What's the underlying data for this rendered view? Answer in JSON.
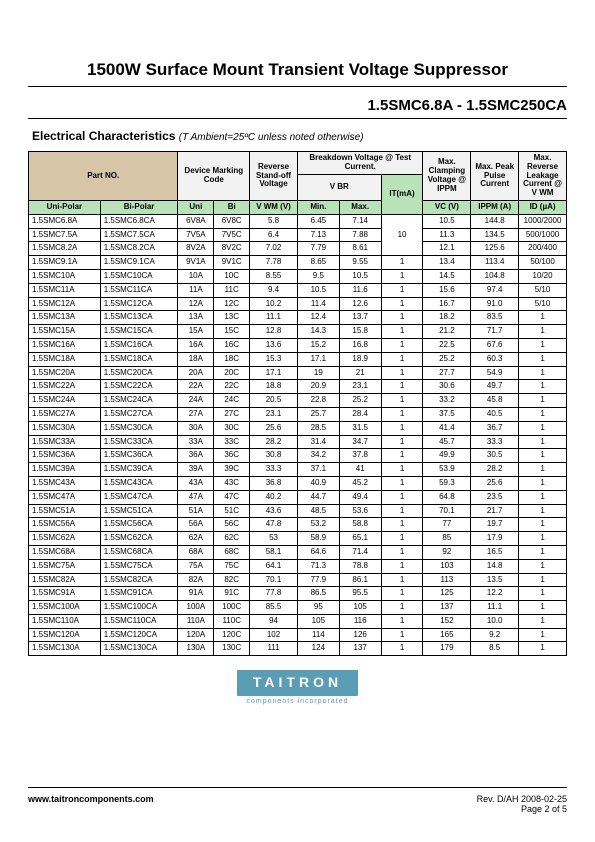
{
  "title": "1500W Surface Mount Transient Voltage Suppressor",
  "subtitle": "1.5SMC6.8A - 1.5SMC250CA",
  "section_label": "Electrical Characteristics",
  "section_note": "(T Ambient=25ºC unless noted otherwise)",
  "table": {
    "headers": {
      "part_no": "Part NO.",
      "uni_polar": "Uni-Polar",
      "bi_polar": "Bi-Polar",
      "dev_mark": "Device Marking Code",
      "uni": "Uni",
      "bi": "Bi",
      "rev_standoff": "Reverse Stand-off Voltage",
      "vwm": "V WM  (V)",
      "breakdown": "Breakdown Voltage @ Test Current.",
      "vbr": "V BR",
      "min": "Min.",
      "max": "Max.",
      "it": "IT(mA)",
      "max_clamp": "Max. Clamping Voltage @ IPPM",
      "vc": "VC  (V)",
      "max_peak": "Max. Peak Pulse Current",
      "ippm": "IPPM (A)",
      "max_leak": "Max. Reverse Leakage Current @ V WM",
      "id": "ID (µA)"
    },
    "rows": [
      [
        "1.5SMC6.8A",
        "1.5SMC6.8CA",
        "6V8A",
        "6V8C",
        "5.8",
        "6.45",
        "7.14",
        "",
        "10.5",
        "144.8",
        "1000/2000"
      ],
      [
        "1.5SMC7.5A",
        "1.5SMC7.5CA",
        "7V5A",
        "7V5C",
        "6.4",
        "7.13",
        "7.88",
        "10",
        "11.3",
        "134.5",
        "500/1000"
      ],
      [
        "1.5SMC8.2A",
        "1.5SMC8.2CA",
        "8V2A",
        "8V2C",
        "7.02",
        "7.79",
        "8.61",
        "",
        "12.1",
        "125.6",
        "200/400"
      ],
      [
        "1.5SMC9.1A",
        "1.5SMC9.1CA",
        "9V1A",
        "9V1C",
        "7.78",
        "8.65",
        "9.55",
        "1",
        "13.4",
        "113.4",
        "50/100"
      ],
      [
        "1.5SMC10A",
        "1.5SMC10CA",
        "10A",
        "10C",
        "8.55",
        "9.5",
        "10.5",
        "1",
        "14.5",
        "104.8",
        "10/20"
      ],
      [
        "1.5SMC11A",
        "1.5SMC11CA",
        "11A",
        "11C",
        "9.4",
        "10.5",
        "11.6",
        "1",
        "15.6",
        "97.4",
        "5/10"
      ],
      [
        "1.5SMC12A",
        "1.5SMC12CA",
        "12A",
        "12C",
        "10.2",
        "11.4",
        "12.6",
        "1",
        "16.7",
        "91.0",
        "5/10"
      ],
      [
        "1.5SMC13A",
        "1.5SMC13CA",
        "13A",
        "13C",
        "11.1",
        "12.4",
        "13.7",
        "1",
        "18.2",
        "83.5",
        "1"
      ],
      [
        "1.5SMC15A",
        "1.5SMC15CA",
        "15A",
        "15C",
        "12.8",
        "14.3",
        "15.8",
        "1",
        "21.2",
        "71.7",
        "1"
      ],
      [
        "1.5SMC16A",
        "1.5SMC16CA",
        "16A",
        "16C",
        "13.6",
        "15.2",
        "16.8",
        "1",
        "22.5",
        "67.6",
        "1"
      ],
      [
        "1.5SMC18A",
        "1.5SMC18CA",
        "18A",
        "18C",
        "15.3",
        "17.1",
        "18.9",
        "1",
        "25.2",
        "60.3",
        "1"
      ],
      [
        "1.5SMC20A",
        "1.5SMC20CA",
        "20A",
        "20C",
        "17.1",
        "19",
        "21",
        "1",
        "27.7",
        "54.9",
        "1"
      ],
      [
        "1.5SMC22A",
        "1.5SMC22CA",
        "22A",
        "22C",
        "18.8",
        "20.9",
        "23.1",
        "1",
        "30.6",
        "49.7",
        "1"
      ],
      [
        "1.5SMC24A",
        "1.5SMC24CA",
        "24A",
        "24C",
        "20.5",
        "22.8",
        "25.2",
        "1",
        "33.2",
        "45.8",
        "1"
      ],
      [
        "1.5SMC27A",
        "1.5SMC27CA",
        "27A",
        "27C",
        "23.1",
        "25.7",
        "28.4",
        "1",
        "37.5",
        "40.5",
        "1"
      ],
      [
        "1.5SMC30A",
        "1.5SMC30CA",
        "30A",
        "30C",
        "25.6",
        "28.5",
        "31.5",
        "1",
        "41.4",
        "36.7",
        "1"
      ],
      [
        "1.5SMC33A",
        "1.5SMC33CA",
        "33A",
        "33C",
        "28.2",
        "31.4",
        "34.7",
        "1",
        "45.7",
        "33.3",
        "1"
      ],
      [
        "1.5SMC36A",
        "1.5SMC36CA",
        "36A",
        "36C",
        "30.8",
        "34.2",
        "37.8",
        "1",
        "49.9",
        "30.5",
        "1"
      ],
      [
        "1.5SMC39A",
        "1.5SMC39CA",
        "39A",
        "39C",
        "33.3",
        "37.1",
        "41",
        "1",
        "53.9",
        "28.2",
        "1"
      ],
      [
        "1.5SMC43A",
        "1.5SMC43CA",
        "43A",
        "43C",
        "36.8",
        "40.9",
        "45.2",
        "1",
        "59.3",
        "25.6",
        "1"
      ],
      [
        "1.5SMC47A",
        "1.5SMC47CA",
        "47A",
        "47C",
        "40.2",
        "44.7",
        "49.4",
        "1",
        "64.8",
        "23.5",
        "1"
      ],
      [
        "1.5SMC51A",
        "1.5SMC51CA",
        "51A",
        "51C",
        "43.6",
        "48.5",
        "53.6",
        "1",
        "70.1",
        "21.7",
        "1"
      ],
      [
        "1.5SMC56A",
        "1.5SMC56CA",
        "56A",
        "56C",
        "47.8",
        "53.2",
        "58.8",
        "1",
        "77",
        "19.7",
        "1"
      ],
      [
        "1.5SMC62A",
        "1.5SMC62CA",
        "62A",
        "62C",
        "53",
        "58.9",
        "65.1",
        "1",
        "85",
        "17.9",
        "1"
      ],
      [
        "1.5SMC68A",
        "1.5SMC68CA",
        "68A",
        "68C",
        "58.1",
        "64.6",
        "71.4",
        "1",
        "92",
        "16.5",
        "1"
      ],
      [
        "1.5SMC75A",
        "1.5SMC75CA",
        "75A",
        "75C",
        "64.1",
        "71.3",
        "78.8",
        "1",
        "103",
        "14.8",
        "1"
      ],
      [
        "1.5SMC82A",
        "1.5SMC82CA",
        "82A",
        "82C",
        "70.1",
        "77.9",
        "86.1",
        "1",
        "113",
        "13.5",
        "1"
      ],
      [
        "1.5SMC91A",
        "1.5SMC91CA",
        "91A",
        "91C",
        "77.8",
        "86.5",
        "95.5",
        "1",
        "125",
        "12.2",
        "1"
      ],
      [
        "1.5SMC100A",
        "1.5SMC100CA",
        "100A",
        "100C",
        "85.5",
        "95",
        "105",
        "1",
        "137",
        "11.1",
        "1"
      ],
      [
        "1.5SMC110A",
        "1.5SMC110CA",
        "110A",
        "110C",
        "94",
        "105",
        "116",
        "1",
        "152",
        "10.0",
        "1"
      ],
      [
        "1.5SMC120A",
        "1.5SMC120CA",
        "120A",
        "120C",
        "102",
        "114",
        "126",
        "1",
        "165",
        "9.2",
        "1"
      ],
      [
        "1.5SMC130A",
        "1.5SMC130CA",
        "130A",
        "130C",
        "111",
        "124",
        "137",
        "1",
        "179",
        "8.5",
        "1"
      ]
    ],
    "col_widths_pct": [
      12,
      13,
      6,
      6,
      8,
      7,
      7,
      7,
      8,
      8,
      8
    ],
    "header_bg_part": "#d8c6a8",
    "header_bg_sub": "#b9e2b9",
    "header_bg_top": "#f2f2f2"
  },
  "logo": {
    "text": "TAITRON",
    "sub": "components incorporated",
    "bg": "#5a9db5",
    "fg": "#ffffff"
  },
  "footer": {
    "url": "www.taitroncomponents.com",
    "rev": "Rev. D/AH 2008-02-25",
    "page": "Page 2 of 5"
  }
}
